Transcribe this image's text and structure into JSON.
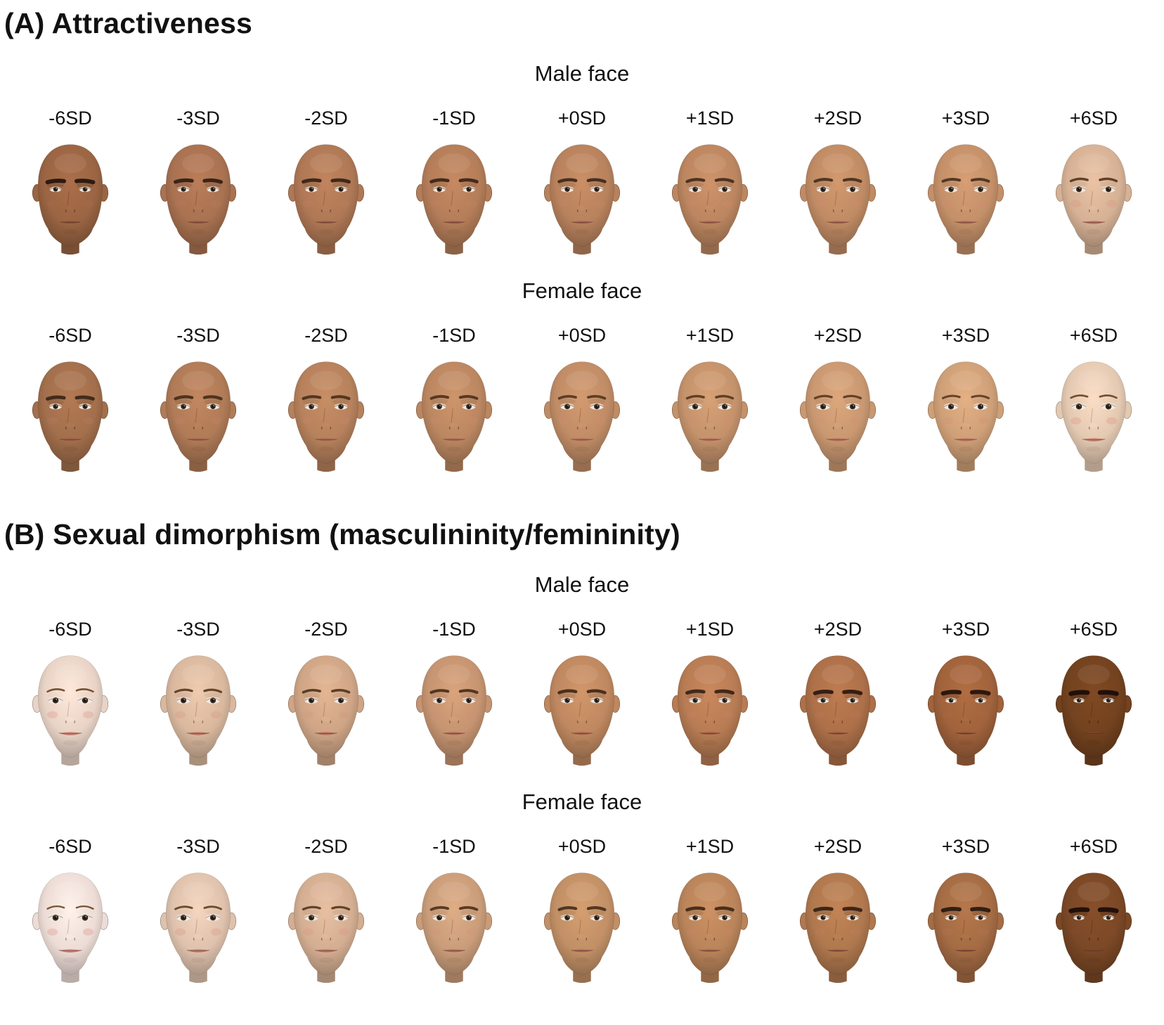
{
  "figure": {
    "background": "#ffffff",
    "text_color": "#111111",
    "panels": [
      {
        "id": "A",
        "title": "(A) Attractiveness",
        "groups": [
          {
            "title": "Male face",
            "faces": [
              {
                "sd": "-6SD",
                "skin": "#9b6543",
                "masc": 0.85
              },
              {
                "sd": "-3SD",
                "skin": "#a97251",
                "masc": 0.7
              },
              {
                "sd": "-2SD",
                "skin": "#af7855",
                "masc": 0.65
              },
              {
                "sd": "-1SD",
                "skin": "#b47d59",
                "masc": 0.6
              },
              {
                "sd": "+0SD",
                "skin": "#b8825d",
                "masc": 0.55
              },
              {
                "sd": "+1SD",
                "skin": "#bc8660",
                "masc": 0.5
              },
              {
                "sd": "+2SD",
                "skin": "#c08b64",
                "masc": 0.46
              },
              {
                "sd": "+3SD",
                "skin": "#c49069",
                "masc": 0.42
              },
              {
                "sd": "+6SD",
                "skin": "#d6b195",
                "masc": 0.3
              }
            ]
          },
          {
            "title": "Female face",
            "faces": [
              {
                "sd": "-6SD",
                "skin": "#a36f4c",
                "masc": 0.62
              },
              {
                "sd": "-3SD",
                "skin": "#b07b57",
                "masc": 0.5
              },
              {
                "sd": "-2SD",
                "skin": "#b6815c",
                "masc": 0.45
              },
              {
                "sd": "-1SD",
                "skin": "#bb8761",
                "masc": 0.4
              },
              {
                "sd": "+0SD",
                "skin": "#c08c66",
                "masc": 0.35
              },
              {
                "sd": "+1SD",
                "skin": "#c4926b",
                "masc": 0.31
              },
              {
                "sd": "+2SD",
                "skin": "#c99871",
                "masc": 0.27
              },
              {
                "sd": "+3SD",
                "skin": "#cfa078",
                "masc": 0.23
              },
              {
                "sd": "+6SD",
                "skin": "#e4c9b2",
                "masc": 0.1
              }
            ]
          }
        ]
      },
      {
        "id": "B",
        "title": "(B) Sexual dimorphism (masculininity/femininity)",
        "groups": [
          {
            "title": "Male face",
            "faces": [
              {
                "sd": "-6SD",
                "skin": "#e8d3c6",
                "masc": 0.08
              },
              {
                "sd": "-3SD",
                "skin": "#d9b89e",
                "masc": 0.25
              },
              {
                "sd": "-2SD",
                "skin": "#cfa586",
                "masc": 0.35
              },
              {
                "sd": "-1SD",
                "skin": "#c69471",
                "masc": 0.45
              },
              {
                "sd": "+0SD",
                "skin": "#bf8860",
                "masc": 0.55
              },
              {
                "sd": "+1SD",
                "skin": "#b87c54",
                "masc": 0.65
              },
              {
                "sd": "+2SD",
                "skin": "#ad7049",
                "masc": 0.78
              },
              {
                "sd": "+3SD",
                "skin": "#a1633c",
                "masc": 0.88
              },
              {
                "sd": "+6SD",
                "skin": "#73421f",
                "masc": 1.0
              }
            ]
          },
          {
            "title": "Female face",
            "faces": [
              {
                "sd": "-6SD",
                "skin": "#eddcd6",
                "masc": 0.04
              },
              {
                "sd": "-3SD",
                "skin": "#dfc2ad",
                "masc": 0.16
              },
              {
                "sd": "-2SD",
                "skin": "#d4ae92",
                "masc": 0.27
              },
              {
                "sd": "-1SD",
                "skin": "#ca9d7a",
                "masc": 0.38
              },
              {
                "sd": "+0SD",
                "skin": "#c29066",
                "masc": 0.46
              },
              {
                "sd": "+1SD",
                "skin": "#ba845a",
                "masc": 0.56
              },
              {
                "sd": "+2SD",
                "skin": "#b0784e",
                "masc": 0.68
              },
              {
                "sd": "+3SD",
                "skin": "#a56c44",
                "masc": 0.8
              },
              {
                "sd": "+6SD",
                "skin": "#7b4826",
                "masc": 0.98
              }
            ]
          }
        ]
      }
    ]
  }
}
